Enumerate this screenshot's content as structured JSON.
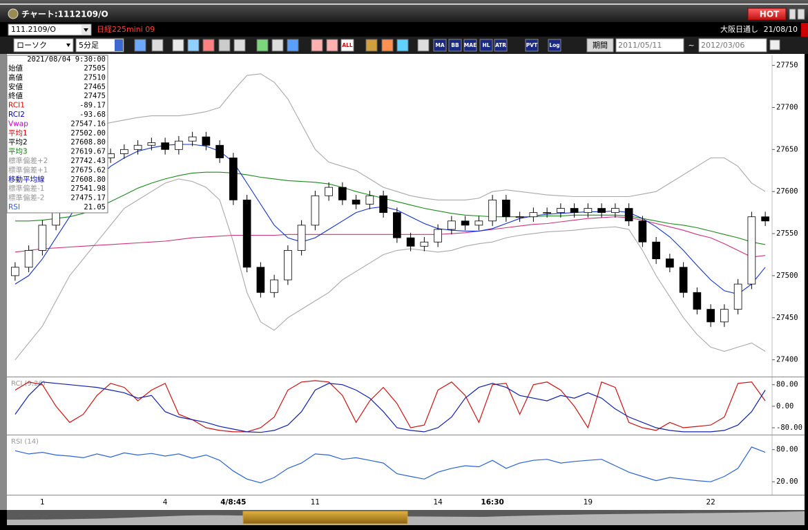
{
  "window": {
    "title": "チャート:1112109/O",
    "hot": "HOT"
  },
  "header": {
    "symbol": "111.2109/O",
    "name": "日経225mini 09",
    "session": "大阪日通し",
    "date": "21/08/10"
  },
  "toolbar": {
    "chart_style": "ローソク",
    "interval": "5分足",
    "buttons": [
      "ALL",
      "MA",
      "BB",
      "MAE",
      "HL",
      "ATR",
      "PVT",
      "Log"
    ],
    "period": "期間",
    "from": "2011/05/11",
    "separator": "~",
    "to": "2012/03/06"
  },
  "info_panel": {
    "datetime": "2021/08/04 9:30:00",
    "rows": [
      {
        "label": "始値",
        "value": "27505",
        "color": "#000000"
      },
      {
        "label": "高値",
        "value": "27510",
        "color": "#000000"
      },
      {
        "label": "安値",
        "value": "27465",
        "color": "#000000"
      },
      {
        "label": "終値",
        "value": "27475",
        "color": "#000000"
      },
      {
        "label": "RCI1",
        "value": "-89.17",
        "color": "#e00000"
      },
      {
        "label": "RCI2",
        "value": "-93.68",
        "color": "#0000c0"
      },
      {
        "label": "Vwap",
        "value": "27547.16",
        "color": "#c000c0"
      },
      {
        "label": "平均1",
        "value": "27502.00",
        "color": "#e00000"
      },
      {
        "label": "平均2",
        "value": "27608.80",
        "color": "#000000"
      },
      {
        "label": "平均3",
        "value": "27619.67",
        "color": "#008000"
      },
      {
        "label": "標準偏差+2",
        "value": "27742.43",
        "color": "#999999"
      },
      {
        "label": "標準偏差+1",
        "value": "27675.62",
        "color": "#999999"
      },
      {
        "label": "移動平均線",
        "value": "27608.80",
        "color": "#0000c0"
      },
      {
        "label": "標準偏差-1",
        "value": "27541.98",
        "color": "#999999"
      },
      {
        "label": "標準偏差-2",
        "value": "27475.17",
        "color": "#999999"
      },
      {
        "label": "RSI",
        "value": "21.05",
        "color": "#3060e0"
      }
    ]
  },
  "chart_data": [
    {
      "type": "candlestick",
      "up_color": "#ffffff",
      "down_color": "#000000",
      "ylim": [
        27380,
        27762
      ],
      "yticks": [
        27400,
        27450,
        27500,
        27550,
        27600,
        27650,
        27700,
        27750
      ],
      "open": [
        27500,
        27510,
        27530,
        27560,
        27590,
        27615,
        27630,
        27640,
        27645,
        27650,
        27655,
        27658,
        27650,
        27660,
        27665,
        27655,
        27640,
        27590,
        27510,
        27480,
        27495,
        27530,
        27560,
        27595,
        27605,
        27590,
        27585,
        27595,
        27575,
        27545,
        27535,
        27540,
        27555,
        27565,
        27560,
        27565,
        27590,
        27570,
        27570,
        27575,
        27575,
        27580,
        27575,
        27580,
        27575,
        27580,
        27565,
        27540,
        27520,
        27510,
        27480,
        27460,
        27445,
        27460,
        27490,
        27570
      ],
      "high": [
        27516,
        27536,
        27566,
        27596,
        27621,
        27636,
        27646,
        27651,
        27656,
        27661,
        27664,
        27664,
        27666,
        27671,
        27671,
        27661,
        27646,
        27596,
        27516,
        27501,
        27536,
        27566,
        27601,
        27611,
        27611,
        27596,
        27601,
        27601,
        27581,
        27551,
        27546,
        27561,
        27571,
        27571,
        27571,
        27596,
        27596,
        27576,
        27581,
        27581,
        27586,
        27586,
        27586,
        27586,
        27586,
        27586,
        27571,
        27546,
        27526,
        27516,
        27486,
        27466,
        27466,
        27496,
        27576,
        27576
      ],
      "low": [
        27494,
        27504,
        27524,
        27554,
        27584,
        27609,
        27624,
        27634,
        27639,
        27644,
        27649,
        27644,
        27644,
        27654,
        27649,
        27634,
        27584,
        27504,
        27474,
        27474,
        27489,
        27524,
        27554,
        27589,
        27584,
        27579,
        27579,
        27569,
        27539,
        27529,
        27529,
        27534,
        27549,
        27554,
        27554,
        27559,
        27564,
        27564,
        27564,
        27569,
        27569,
        27569,
        27569,
        27569,
        27569,
        27559,
        27534,
        27514,
        27504,
        27474,
        27454,
        27439,
        27439,
        27454,
        27484,
        27559
      ],
      "close": [
        27510,
        27530,
        27560,
        27590,
        27615,
        27630,
        27640,
        27645,
        27650,
        27655,
        27658,
        27650,
        27660,
        27665,
        27655,
        27640,
        27590,
        27510,
        27480,
        27495,
        27530,
        27560,
        27595,
        27605,
        27590,
        27585,
        27595,
        27575,
        27545,
        27535,
        27540,
        27555,
        27565,
        27560,
        27565,
        27590,
        27570,
        27570,
        27575,
        27575,
        27580,
        27575,
        27580,
        27575,
        27580,
        27565,
        27540,
        27520,
        27510,
        27480,
        27460,
        27445,
        27460,
        27490,
        27570,
        27565
      ],
      "overlays": [
        {
          "color": "#a8a8a8",
          "values": [
            27600,
            27620,
            27640,
            27655,
            27665,
            27672,
            27678,
            27682,
            27685,
            27688,
            27690,
            27690,
            27690,
            27692,
            27695,
            27700,
            27720,
            27738,
            27740,
            27730,
            27710,
            27680,
            27650,
            27635,
            27630,
            27625,
            27615,
            27605,
            27600,
            27595,
            27592,
            27590,
            27590,
            27590,
            27592,
            27600,
            27602,
            27600,
            27598,
            27596,
            27595,
            27594,
            27594,
            27594,
            27594,
            27594,
            27597,
            27600,
            27610,
            27620,
            27630,
            27640,
            27640,
            27630,
            27610,
            27600
          ]
        },
        {
          "color": "#a8a8a8",
          "values": [
            27400,
            27420,
            27440,
            27470,
            27500,
            27520,
            27540,
            27560,
            27580,
            27590,
            27600,
            27610,
            27615,
            27612,
            27605,
            27590,
            27540,
            27480,
            27445,
            27435,
            27450,
            27460,
            27470,
            27480,
            27495,
            27505,
            27515,
            27525,
            27530,
            27532,
            27530,
            27528,
            27530,
            27535,
            27538,
            27540,
            27545,
            27548,
            27550,
            27552,
            27553,
            27554,
            27556,
            27557,
            27558,
            27555,
            27530,
            27500,
            27475,
            27450,
            27430,
            27415,
            27410,
            27415,
            27420,
            27410
          ]
        },
        {
          "color": "#d0307a",
          "values": [
            27528,
            27530,
            27532,
            27533,
            27534,
            27535,
            27536,
            27537,
            27538,
            27539,
            27540,
            27541,
            27543,
            27545,
            27546,
            27547,
            27548,
            27548,
            27548,
            27548,
            27549,
            27549,
            27549,
            27549,
            27549,
            27549,
            27549,
            27549,
            27549,
            27549,
            27549,
            27549,
            27550,
            27551,
            27553,
            27555,
            27557,
            27559,
            27561,
            27562,
            27564,
            27566,
            27568,
            27569,
            27570,
            27569,
            27566,
            27562,
            27558,
            27554,
            27549,
            27545,
            27538,
            27530,
            27522,
            27524
          ]
        },
        {
          "color": "#1a8a1a",
          "values": [
            27565,
            27565,
            27566,
            27568,
            27570,
            27574,
            27580,
            27588,
            27596,
            27604,
            27610,
            27615,
            27619,
            27622,
            27623,
            27623,
            27622,
            27620,
            27617,
            27615,
            27613,
            27612,
            27611,
            27609,
            27605,
            27600,
            27596,
            27592,
            27588,
            27584,
            27580,
            27577,
            27574,
            27572,
            27571,
            27570,
            27570,
            27570,
            27570,
            27571,
            27571,
            27572,
            27572,
            27572,
            27572,
            27571,
            27568,
            27565,
            27562,
            27560,
            27557,
            27553,
            27549,
            27545,
            27540,
            27537
          ]
        },
        {
          "color": "#1030d0",
          "values": [
            27490,
            27500,
            27520,
            27545,
            27570,
            27595,
            27615,
            27630,
            27640,
            27648,
            27652,
            27655,
            27656,
            27656,
            27654,
            27648,
            27635,
            27610,
            27585,
            27560,
            27545,
            27540,
            27545,
            27555,
            27565,
            27575,
            27580,
            27582,
            27578,
            27570,
            27562,
            27556,
            27554,
            27553,
            27553,
            27556,
            27562,
            27568,
            27571,
            27573,
            27574,
            27575,
            27576,
            27576,
            27577,
            27575,
            27568,
            27558,
            27546,
            27530,
            27512,
            27495,
            27482,
            27478,
            27490,
            27510
          ]
        }
      ]
    },
    {
      "type": "line",
      "title": "RCI (9,26)",
      "ylim": [
        -103,
        105
      ],
      "yticks": [
        {
          "value": 80,
          "label": "80.00"
        },
        {
          "value": 0,
          "label": "0.00"
        },
        {
          "value": -80,
          "label": "-80.00"
        }
      ],
      "series": [
        {
          "color": "#d01010",
          "values": [
            60,
            90,
            80,
            0,
            -60,
            -30,
            40,
            85,
            70,
            20,
            60,
            85,
            -30,
            -50,
            -80,
            -90,
            -95,
            -95,
            -80,
            -40,
            60,
            90,
            95,
            90,
            40,
            -60,
            20,
            70,
            10,
            -80,
            -70,
            60,
            90,
            40,
            -60,
            80,
            85,
            -30,
            80,
            90,
            60,
            0,
            -80,
            90,
            70,
            -60,
            -80,
            -90,
            -60,
            -80,
            -75,
            -70,
            -40,
            85,
            90,
            20
          ]
        },
        {
          "color": "#1020b0",
          "values": [
            -30,
            40,
            90,
            85,
            80,
            75,
            70,
            60,
            50,
            30,
            40,
            -20,
            -40,
            -50,
            -60,
            -75,
            -85,
            -95,
            -97,
            -90,
            -70,
            -20,
            60,
            85,
            80,
            60,
            30,
            -20,
            -80,
            -90,
            -95,
            -80,
            -40,
            30,
            70,
            85,
            70,
            40,
            30,
            20,
            40,
            30,
            50,
            30,
            -10,
            -40,
            -60,
            -80,
            -90,
            -95,
            -95,
            -95,
            -90,
            -70,
            -20,
            60
          ]
        }
      ]
    },
    {
      "type": "line",
      "title": "RSI (14)",
      "ylim": [
        -3,
        105.5
      ],
      "yticks": [
        {
          "value": 80,
          "label": "80.00"
        },
        {
          "value": 20,
          "label": "20.00"
        }
      ],
      "categories": [
        null,
        null,
        "1",
        null,
        null,
        null,
        null,
        null,
        null,
        null,
        null,
        "4",
        null,
        null,
        null,
        null,
        "4/8:45",
        null,
        null,
        null,
        null,
        null,
        "11",
        null,
        null,
        null,
        null,
        null,
        null,
        null,
        null,
        "14",
        null,
        null,
        null,
        "16:30",
        null,
        null,
        null,
        null,
        null,
        null,
        "19",
        null,
        null,
        null,
        null,
        null,
        null,
        null,
        null,
        "22",
        null,
        null,
        null,
        null
      ],
      "series": [
        {
          "color": "#2a62d8",
          "values": [
            78,
            72,
            75,
            70,
            68,
            65,
            72,
            66,
            74,
            70,
            73,
            68,
            72,
            64,
            70,
            60,
            40,
            25,
            18,
            28,
            45,
            55,
            72,
            70,
            62,
            65,
            60,
            55,
            35,
            30,
            25,
            38,
            45,
            50,
            48,
            60,
            45,
            55,
            60,
            62,
            55,
            58,
            60,
            62,
            50,
            38,
            30,
            22,
            28,
            25,
            22,
            20,
            30,
            45,
            85,
            75
          ]
        }
      ]
    }
  ]
}
